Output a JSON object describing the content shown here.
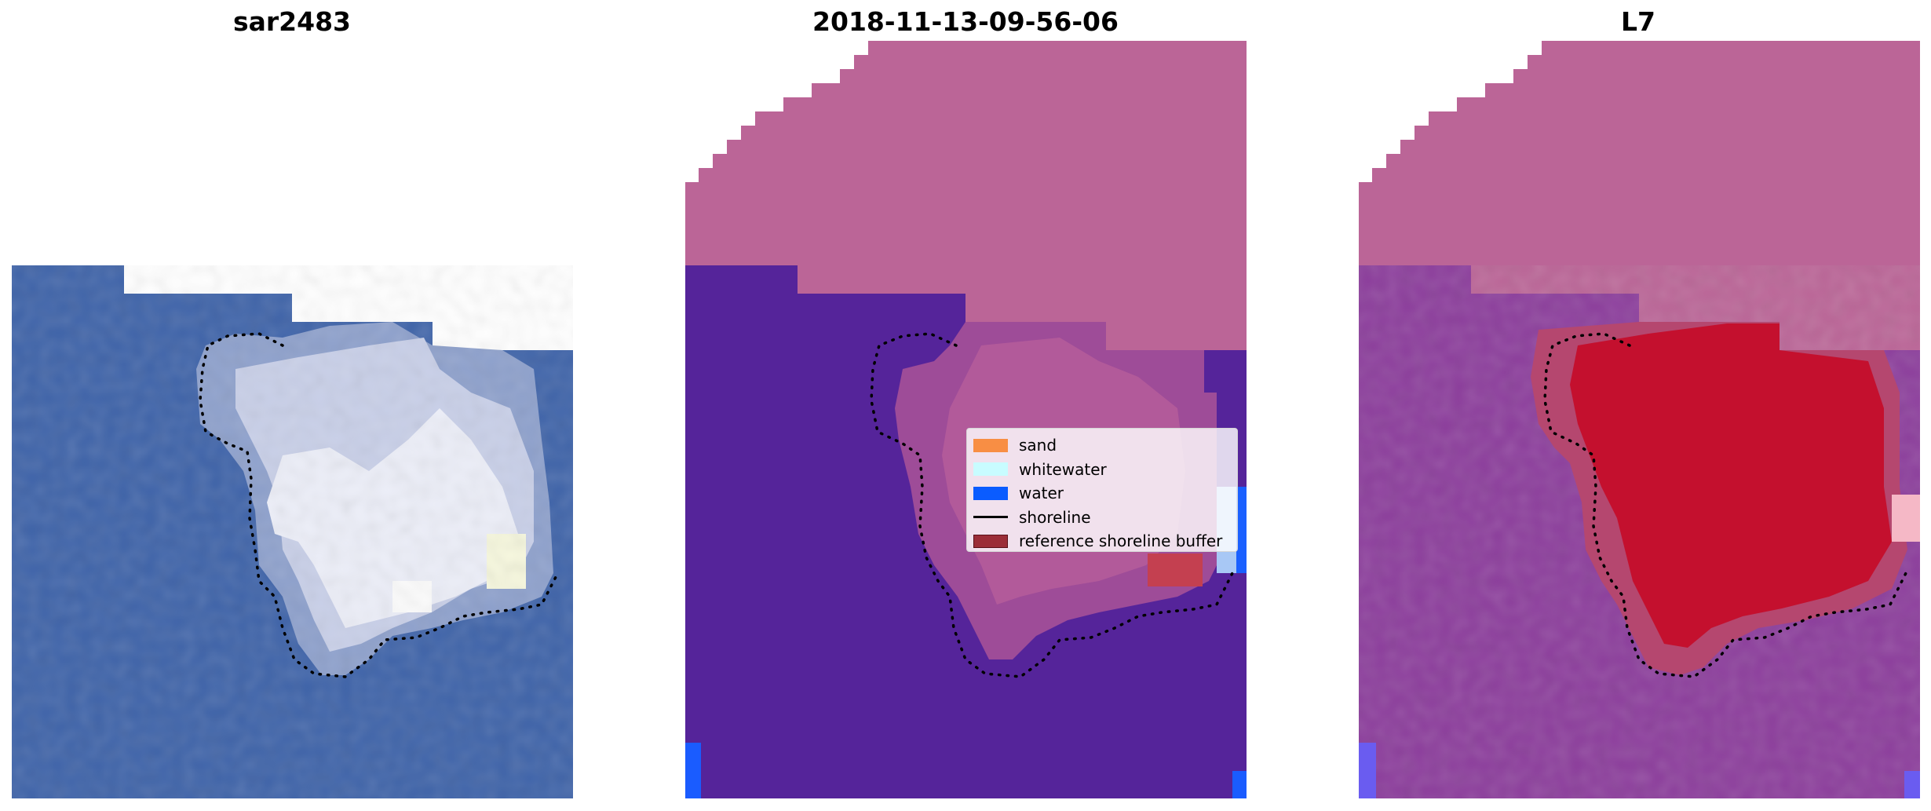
{
  "panels": [
    {
      "title": "sar2483",
      "content": "satellite RGB image"
    },
    {
      "title": "2018-11-13-09-56-06",
      "content": "classified image"
    },
    {
      "title": "L7",
      "content": "false-colour image"
    }
  ],
  "legend": {
    "items": [
      {
        "label": "sand",
        "color": "#f88e44",
        "kind": "patch"
      },
      {
        "label": "whitewater",
        "color": "#c8fcff",
        "kind": "patch"
      },
      {
        "label": "water",
        "color": "#0a5cff",
        "kind": "patch"
      },
      {
        "label": "shoreline",
        "color": "#000000",
        "kind": "line"
      },
      {
        "label": "reference shoreline buffer",
        "color": "#9b2d38",
        "kind": "patch"
      }
    ]
  },
  "colors": {
    "nodata_mask": "#bb6597",
    "water_class": "#55249a",
    "rgb_water": "#3d62a8",
    "rgb_cloud": "#d8dcf0",
    "false_color_bg": "#8a3c9a",
    "false_color_cloud": "#c4102e"
  },
  "icons": [
    "shoreline-dotted-contour"
  ]
}
